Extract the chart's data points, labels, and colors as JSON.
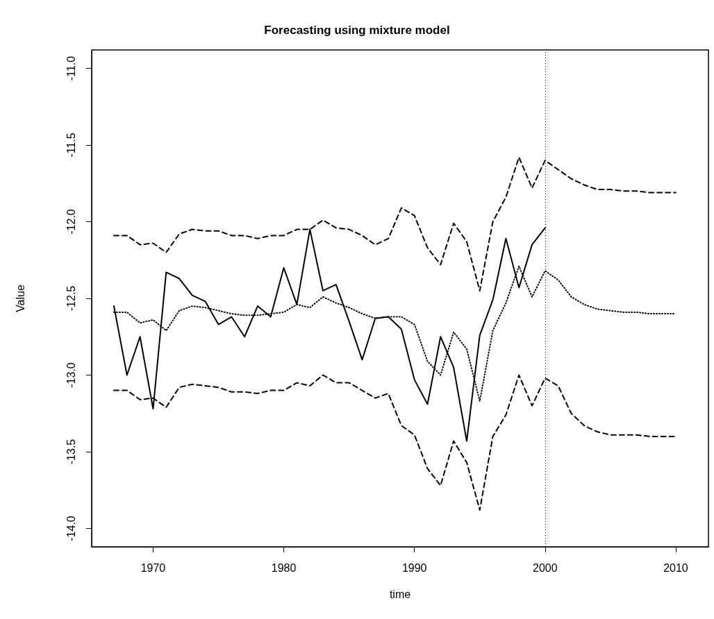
{
  "chart_data": {
    "type": "line",
    "title": "Forecasting using mixture model",
    "xlabel": "time",
    "ylabel": "Value",
    "x": [
      1967,
      1968,
      1969,
      1970,
      1971,
      1972,
      1973,
      1974,
      1975,
      1976,
      1977,
      1978,
      1979,
      1980,
      1981,
      1982,
      1983,
      1984,
      1985,
      1986,
      1987,
      1988,
      1989,
      1990,
      1991,
      1992,
      1993,
      1994,
      1995,
      1996,
      1997,
      1998,
      1999,
      2000,
      2001,
      2002,
      2003,
      2004,
      2005,
      2006,
      2007,
      2008,
      2009,
      2010
    ],
    "series": [
      {
        "color": "#000000",
        "line_style": "solid",
        "values": [
          -12.55,
          -13.0,
          -12.75,
          -13.22,
          -12.33,
          -12.37,
          -12.48,
          -12.52,
          -12.67,
          -12.62,
          -12.75,
          -12.55,
          -12.62,
          -12.3,
          -12.54,
          -12.05,
          -12.45,
          -12.41,
          -12.65,
          -12.9,
          -12.63,
          -12.62,
          -12.7,
          -13.03,
          -13.19,
          -12.75,
          -12.95,
          -13.43,
          -12.74,
          -12.51,
          -12.11,
          -12.43,
          -12.15,
          -12.04,
          null,
          null,
          null,
          null,
          null,
          null,
          null,
          null,
          null,
          null
        ]
      },
      {
        "color": "#000000",
        "line_style": "dotted",
        "values": [
          -12.59,
          -12.59,
          -12.66,
          -12.64,
          -12.71,
          -12.58,
          -12.55,
          -12.56,
          -12.58,
          -12.6,
          -12.61,
          -12.61,
          -12.6,
          -12.59,
          -12.54,
          -12.56,
          -12.49,
          -12.53,
          -12.56,
          -12.6,
          -12.63,
          -12.62,
          -12.62,
          -12.67,
          -12.91,
          -13.0,
          -12.72,
          -12.83,
          -13.17,
          -12.71,
          -12.53,
          -12.29,
          -12.49,
          -12.32,
          -12.38,
          -12.49,
          -12.54,
          -12.57,
          -12.58,
          -12.59,
          -12.59,
          -12.6,
          -12.6,
          -12.6
        ]
      },
      {
        "color": "#000000",
        "line_style": "dashed",
        "values": [
          -12.09,
          -12.09,
          -12.15,
          -12.14,
          -12.2,
          -12.08,
          -12.05,
          -12.06,
          -12.06,
          -12.09,
          -12.09,
          -12.11,
          -12.09,
          -12.09,
          -12.05,
          -12.05,
          -11.99,
          -12.04,
          -12.05,
          -12.09,
          -12.15,
          -12.11,
          -11.91,
          -11.96,
          -12.17,
          -12.28,
          -12.01,
          -12.13,
          -12.45,
          -12.0,
          -11.84,
          -11.58,
          -11.78,
          -11.6,
          -11.66,
          -11.72,
          -11.76,
          -11.79,
          -11.79,
          -11.8,
          -11.8,
          -11.81,
          -11.81,
          -11.81
        ]
      },
      {
        "color": "#000000",
        "line_style": "dashed",
        "values": [
          -13.1,
          -13.1,
          -13.16,
          -13.15,
          -13.21,
          -13.08,
          -13.06,
          -13.07,
          -13.08,
          -13.11,
          -13.11,
          -13.12,
          -13.1,
          -13.1,
          -13.05,
          -13.07,
          -13.0,
          -13.05,
          -13.05,
          -13.1,
          -13.15,
          -13.12,
          -13.33,
          -13.39,
          -13.61,
          -13.72,
          -13.43,
          -13.57,
          -13.88,
          -13.4,
          -13.26,
          -13.0,
          -13.2,
          -13.02,
          -13.07,
          -13.25,
          -13.33,
          -13.37,
          -13.39,
          -13.39,
          -13.39,
          -13.4,
          -13.4,
          -13.4
        ]
      }
    ],
    "xlim": [
      1965.3,
      2012.5
    ],
    "xticks": [
      1970,
      1980,
      1990,
      2000,
      2010
    ],
    "ylim": [
      -14.12,
      -10.88
    ],
    "yticks": [
      {
        "value": -14,
        "label": "-14.0"
      },
      -13.5,
      {
        "value": -13,
        "label": "-13.0"
      },
      -12.5,
      {
        "value": -12,
        "label": "-12.0"
      },
      -11.5,
      {
        "value": -11,
        "label": "-11.0"
      }
    ],
    "ref_lines": [
      {
        "axis": "x",
        "value": 2000,
        "label": null,
        "color": "#000000",
        "line_style": "dotted"
      }
    ],
    "marker": "none",
    "grid": false
  }
}
